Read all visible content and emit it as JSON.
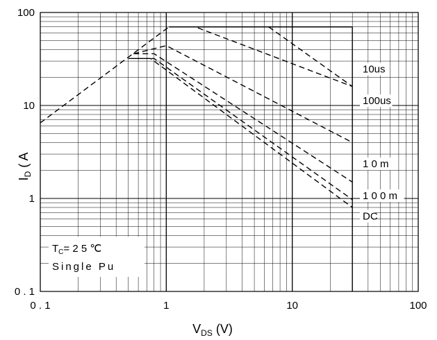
{
  "chart_data": {
    "type": "line",
    "xscale": "log",
    "yscale": "log",
    "xlim": [
      0.1,
      100
    ],
    "ylim": [
      0.1,
      100
    ],
    "x_tick_labels": [
      {
        "value": 0.1,
        "label": "0 . 1"
      },
      {
        "value": 1,
        "label": "1"
      },
      {
        "value": 10,
        "label": "10"
      },
      {
        "value": 100,
        "label": "100"
      }
    ],
    "y_tick_labels": [
      {
        "value": 100,
        "label": "100"
      },
      {
        "value": 10,
        "label": "10"
      },
      {
        "value": 1,
        "label": "1"
      },
      {
        "value": 0.1,
        "label": "0 . 1"
      }
    ],
    "xlabel": "V",
    "xlabel_sub": "DS",
    "xlabel_suffix": " (V)",
    "ylabel": "I",
    "ylabel_sub": "D",
    "ylabel_suffix": " ( A",
    "grid": true,
    "boundary_lines": [
      {
        "x": [
          1.05,
          30
        ],
        "y": [
          70,
          70
        ]
      },
      {
        "x": [
          30,
          30
        ],
        "y": [
          70,
          0.1
        ]
      }
    ],
    "series": [
      {
        "name": "10us",
        "x": [
          0.1,
          1.05,
          1.7,
          30
        ],
        "y": [
          6.5,
          70,
          70,
          16
        ]
      },
      {
        "name": "",
        "x": [
          6.5,
          30
        ],
        "y": [
          70,
          16
        ]
      },
      {
        "name": "100us",
        "x": [
          0.55,
          1.0,
          30
        ],
        "y": [
          36,
          44,
          4.0
        ]
      },
      {
        "name": "1 0 m",
        "x": [
          0.55,
          0.8,
          30
        ],
        "y": [
          36,
          36,
          1.5
        ]
      },
      {
        "name": "1 0 0 m",
        "x": [
          0.55,
          0.8,
          30
        ],
        "y": [
          32,
          32,
          0.97
        ]
      },
      {
        "name": "DC",
        "x": [
          0.5,
          0.75,
          30
        ],
        "y": [
          32,
          32,
          0.8
        ]
      }
    ],
    "annotations": [
      {
        "text": "Single Pu"
      }
    ],
    "annotation_tc": {
      "prefix": "T",
      "sub": "C",
      "suffix": "= 2 5 ℃"
    }
  }
}
